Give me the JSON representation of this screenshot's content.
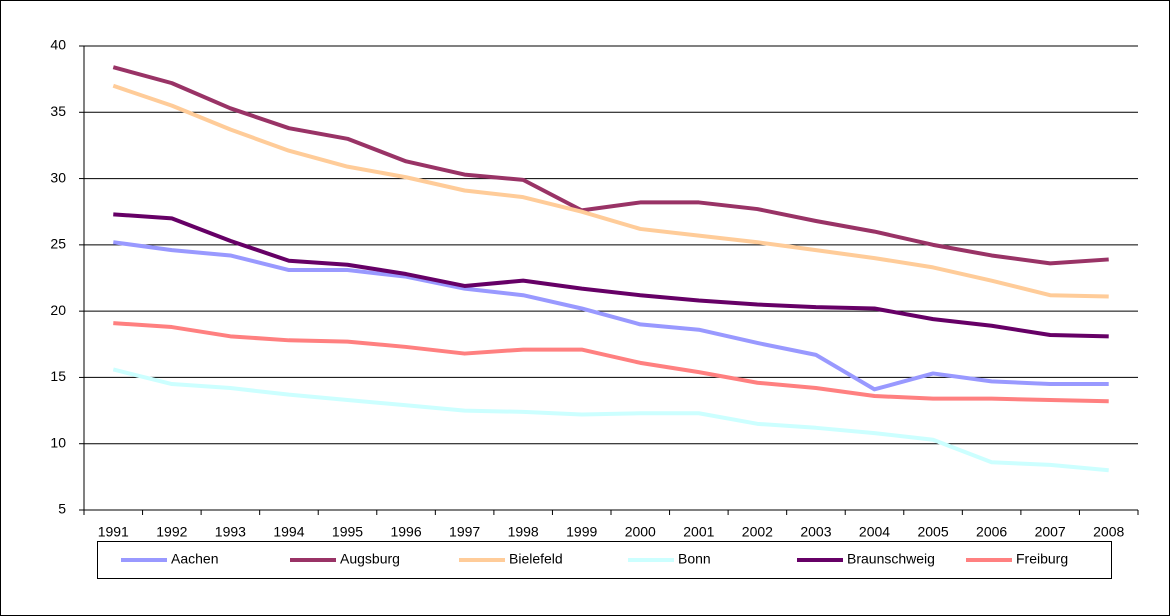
{
  "chart_data": {
    "type": "line",
    "categories": [
      "1991",
      "1992",
      "1993",
      "1994",
      "1995",
      "1996",
      "1997",
      "1998",
      "1999",
      "2000",
      "2001",
      "2002",
      "2003",
      "2004",
      "2005",
      "2006",
      "2007",
      "2008"
    ],
    "series": [
      {
        "name": "Aachen",
        "color": "#9999ff",
        "values": [
          25.2,
          24.6,
          24.2,
          23.1,
          23.1,
          22.6,
          21.7,
          21.2,
          20.2,
          19.0,
          18.6,
          17.6,
          16.7,
          14.1,
          15.3,
          14.7,
          14.5,
          14.5
        ]
      },
      {
        "name": "Augsburg",
        "color": "#993366",
        "values": [
          38.4,
          37.2,
          35.3,
          33.8,
          33.0,
          31.3,
          30.3,
          29.9,
          27.6,
          28.2,
          28.2,
          27.7,
          26.8,
          26.0,
          25.0,
          24.2,
          23.6,
          23.9
        ]
      },
      {
        "name": "Bielefeld",
        "color": "#ffcc99",
        "values": [
          37.0,
          35.5,
          33.7,
          32.1,
          30.9,
          30.1,
          29.1,
          28.6,
          27.5,
          26.2,
          25.7,
          25.2,
          24.6,
          24.0,
          23.3,
          22.3,
          21.2,
          21.1
        ]
      },
      {
        "name": "Bonn",
        "color": "#ccffff",
        "values": [
          15.6,
          14.5,
          14.2,
          13.7,
          13.3,
          12.9,
          12.5,
          12.4,
          12.2,
          12.3,
          12.3,
          11.5,
          11.2,
          10.8,
          10.3,
          8.6,
          8.4,
          8.0
        ]
      },
      {
        "name": "Braunschweig",
        "color": "#660066",
        "values": [
          27.3,
          27.0,
          25.3,
          23.8,
          23.5,
          22.8,
          21.9,
          22.3,
          21.7,
          21.2,
          20.8,
          20.5,
          20.3,
          20.2,
          19.4,
          18.9,
          18.2,
          18.1
        ]
      },
      {
        "name": "Freiburg",
        "color": "#ff8080",
        "values": [
          19.1,
          18.8,
          18.1,
          17.8,
          17.7,
          17.3,
          16.8,
          17.1,
          17.1,
          16.1,
          15.4,
          14.6,
          14.2,
          13.6,
          13.4,
          13.4,
          13.3,
          13.2
        ]
      }
    ],
    "ylim": [
      5,
      40
    ],
    "yticks": [
      5,
      10,
      15,
      20,
      25,
      30,
      35,
      40
    ],
    "grid": true,
    "legend": "bottom"
  }
}
